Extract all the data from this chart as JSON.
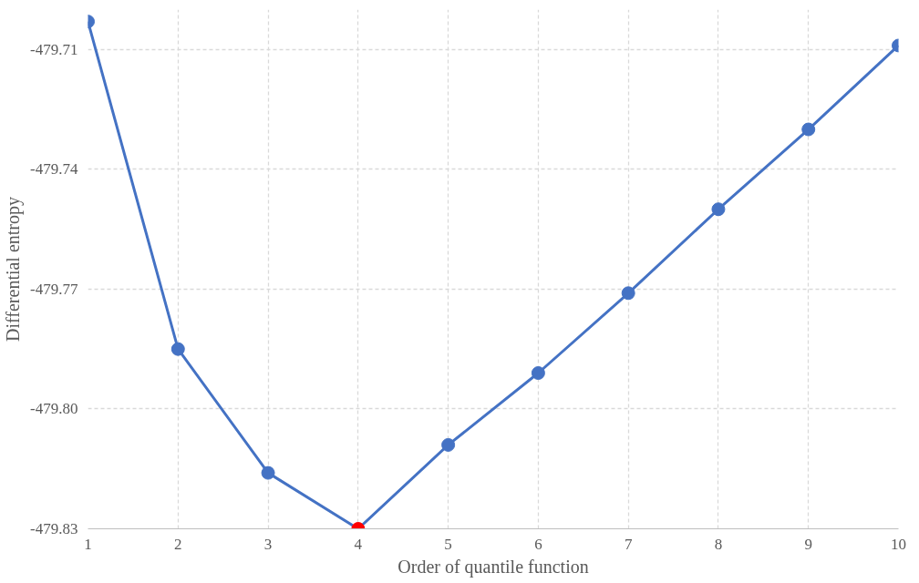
{
  "chart_data": {
    "type": "line",
    "xlabel": "Order of quantile function",
    "ylabel": "Differential entropy",
    "x": [
      1,
      2,
      3,
      4,
      5,
      6,
      7,
      8,
      9,
      10
    ],
    "series": [
      {
        "color": "#4472c4",
        "values": [
          -479.703,
          -479.785,
          -479.816,
          -479.83,
          -479.809,
          -479.791,
          -479.771,
          -479.75,
          -479.73,
          -479.709
        ],
        "colors": [
          "#4472c4",
          "#4472c4",
          "#4472c4",
          "#ff0000",
          "#4472c4",
          "#4472c4",
          "#4472c4",
          "#4472c4",
          "#4472c4",
          "#4472c4"
        ]
      }
    ],
    "xlim": [
      1,
      10
    ],
    "xticks": [
      1,
      2,
      3,
      4,
      5,
      6,
      7,
      8,
      9,
      10
    ],
    "ylim": [
      -479.83,
      -479.7
    ],
    "yticks": [
      {
        "value": -479.83,
        "label": "-479.83"
      },
      {
        "value": -479.8,
        "label": "-479.80"
      },
      {
        "value": -479.77,
        "label": "-479.77"
      },
      {
        "value": -479.74,
        "label": "-479.74"
      },
      {
        "value": -479.71,
        "label": "-479.71"
      }
    ],
    "grid": true,
    "marker": "circle",
    "line_style": "solid"
  }
}
